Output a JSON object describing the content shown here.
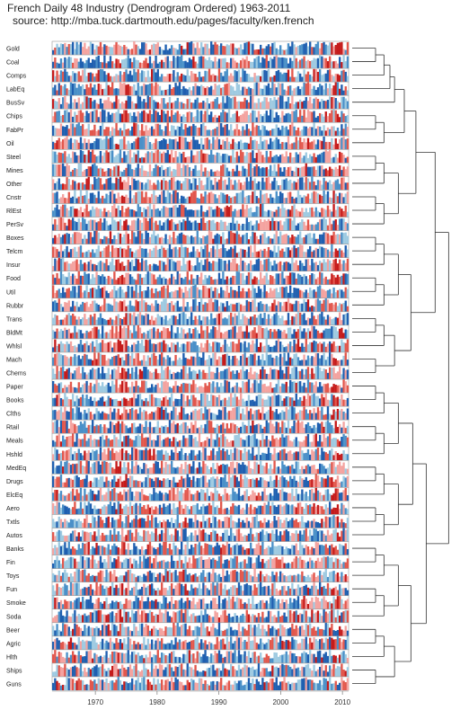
{
  "header": {
    "title": "French Daily 48 Industry (Dendrogram Ordered) 1963-2011",
    "subtitle": "source: http://mba.tuck.dartmouth.edu/pages/faculty/ken.french"
  },
  "chart_data": {
    "type": "horizon",
    "industries": [
      "Gold",
      "Coal",
      "Comps",
      "LabEq",
      "BusSv",
      "Chips",
      "FabPr",
      "Oil",
      "Steel",
      "Mines",
      "Other",
      "Cnstr",
      "RlEst",
      "PerSv",
      "Boxes",
      "Telcm",
      "Insur",
      "Food",
      "Util",
      "Rubbr",
      "Trans",
      "BldMt",
      "Whlsl",
      "Mach",
      "Chems",
      "Paper",
      "Books",
      "Clths",
      "Rtail",
      "Meals",
      "Hshld",
      "MedEq",
      "Drugs",
      "ElcEq",
      "Aero",
      "Txtls",
      "Autos",
      "Banks",
      "Fin",
      "Toys",
      "Fun",
      "Smoke",
      "Soda",
      "Beer",
      "Agric",
      "Hlth",
      "Ships",
      "Guns"
    ],
    "xrange": [
      1963,
      2011
    ],
    "xticks": [
      1970,
      1980,
      1990,
      2000,
      2010
    ],
    "xtick_labels": [
      "1970",
      "1980",
      "1990",
      "2000",
      "2010"
    ],
    "colors": {
      "positive": [
        "#9ecae1",
        "#4a90c8",
        "#1f5fb0"
      ],
      "negative": [
        "#f4a3a0",
        "#e2574c",
        "#c51b1b"
      ],
      "dendrogram": "#333333"
    },
    "grid": false,
    "legend": "none"
  }
}
